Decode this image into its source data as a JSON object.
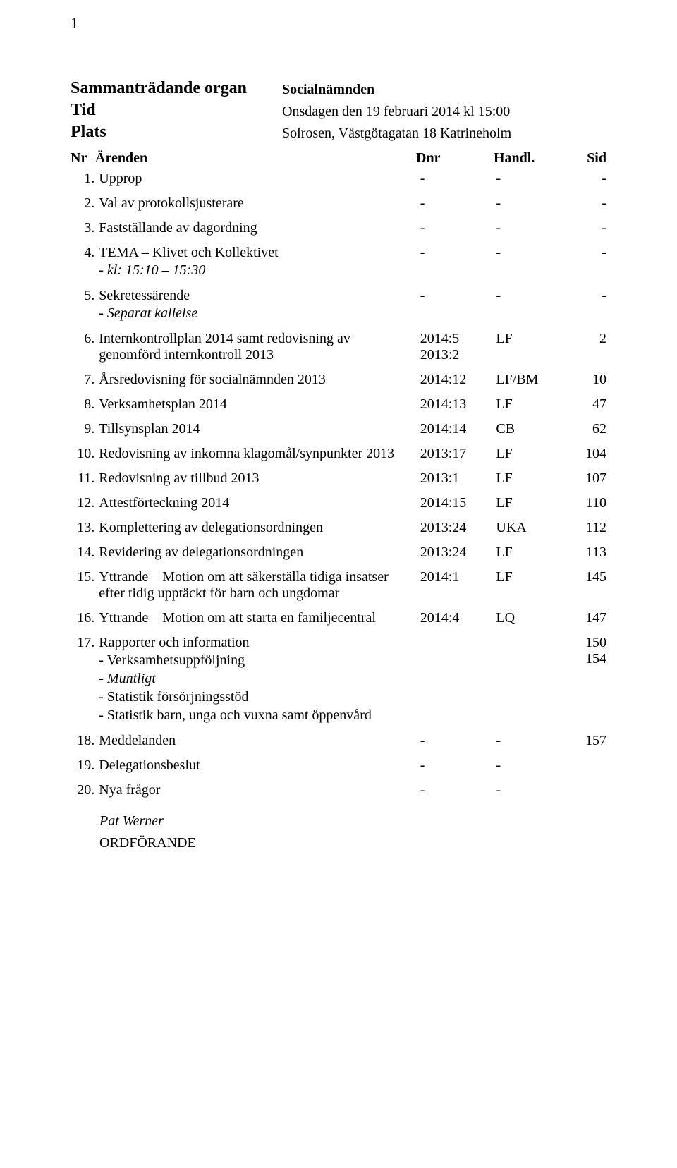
{
  "page_number": "1",
  "header": {
    "organ_label": "Sammanträdande organ",
    "organ_value": "Socialnämnden",
    "tid_label": "Tid",
    "tid_value": "Onsdagen den 19 februari 2014 kl 15:00",
    "plats_label": "Plats",
    "plats_value": "Solrosen, Västgötagatan 18 Katrineholm"
  },
  "columns": {
    "nr": "Nr",
    "arenden": "Ärenden",
    "dnr": "Dnr",
    "handl": "Handl.",
    "sid": "Sid"
  },
  "items": [
    {
      "nr": "1.",
      "text": "Upprop",
      "dnr": [
        "-"
      ],
      "handl": "-",
      "sid": [
        "-"
      ]
    },
    {
      "nr": "2.",
      "text": "Val av protokollsjusterare",
      "dnr": [
        "-"
      ],
      "handl": "-",
      "sid": [
        "-"
      ]
    },
    {
      "nr": "3.",
      "text": "Fastställande av dagordning",
      "dnr": [
        "-"
      ],
      "handl": "-",
      "sid": [
        "-"
      ]
    },
    {
      "nr": "4.",
      "text": "TEMA – Klivet och Kollektivet",
      "subs": [
        {
          "text": "- kl: 15:10 – 15:30",
          "italic": true
        }
      ],
      "dnr": [
        "-"
      ],
      "handl": "-",
      "sid": [
        "-"
      ]
    },
    {
      "nr": "5.",
      "text": "Sekretessärende",
      "subs": [
        {
          "text": "- Separat kallelse",
          "italic": true
        }
      ],
      "dnr": [
        "-"
      ],
      "handl": "-",
      "sid": [
        "-"
      ]
    },
    {
      "nr": "6.",
      "text": "Internkontrollplan 2014 samt redovisning av genomförd internkontroll 2013",
      "dnr": [
        "2014:5",
        "2013:2"
      ],
      "handl": "LF",
      "sid": [
        "2"
      ]
    },
    {
      "nr": "7.",
      "text": "Årsredovisning för socialnämnden 2013",
      "dnr": [
        "2014:12"
      ],
      "handl": "LF/BM",
      "sid": [
        "10"
      ]
    },
    {
      "nr": "8.",
      "text": "Verksamhetsplan 2014",
      "dnr": [
        "2014:13"
      ],
      "handl": "LF",
      "sid": [
        "47"
      ]
    },
    {
      "nr": "9.",
      "text": "Tillsynsplan 2014",
      "dnr": [
        "2014:14"
      ],
      "handl": "CB",
      "sid": [
        "62"
      ]
    },
    {
      "nr": "10.",
      "text": "Redovisning av inkomna klagomål/synpunkter 2013",
      "dnr": [
        "2013:17"
      ],
      "handl": "LF",
      "sid": [
        "104"
      ]
    },
    {
      "nr": "11.",
      "text": "Redovisning av tillbud 2013",
      "dnr": [
        "2013:1"
      ],
      "handl": "LF",
      "sid": [
        "107"
      ]
    },
    {
      "nr": "12.",
      "text": "Attestförteckning 2014",
      "dnr": [
        "2014:15"
      ],
      "handl": "LF",
      "sid": [
        "110"
      ]
    },
    {
      "nr": "13.",
      "text": "Komplettering av delegationsordningen",
      "dnr": [
        "2013:24"
      ],
      "handl": "UKA",
      "sid": [
        "112"
      ]
    },
    {
      "nr": "14.",
      "text": "Revidering av delegationsordningen",
      "dnr": [
        "2013:24"
      ],
      "handl": "LF",
      "sid": [
        "113"
      ]
    },
    {
      "nr": "15.",
      "text": "Yttrande – Motion om att säkerställa tidiga insatser efter tidig upptäckt för barn och ungdomar",
      "dnr": [
        "2014:1"
      ],
      "handl": "LF",
      "sid": [
        "145"
      ]
    },
    {
      "nr": "16.",
      "text": "Yttrande – Motion om att starta en familjecentral",
      "dnr": [
        "2014:4"
      ],
      "handl": "LQ",
      "sid": [
        "147"
      ]
    },
    {
      "nr": "17.",
      "text": "Rapporter och information",
      "subs": [
        {
          "text": "- Verksamhetsuppföljning",
          "italic": false
        },
        {
          "text": "- Muntligt",
          "italic": true
        },
        {
          "text": "- Statistik försörjningsstöd",
          "italic": false
        },
        {
          "text": "- Statistik barn, unga och vuxna samt öppenvård",
          "italic": false
        }
      ],
      "dnr": [
        ""
      ],
      "handl": "",
      "sid": [
        "",
        "",
        "",
        "150",
        "154"
      ]
    },
    {
      "nr": "18.",
      "text": "Meddelanden",
      "dnr": [
        "-"
      ],
      "handl": "-",
      "sid": [
        "157"
      ]
    },
    {
      "nr": "19.",
      "text": "Delegationsbeslut",
      "dnr": [
        "-"
      ],
      "handl": "-",
      "sid": [
        ""
      ]
    },
    {
      "nr": "20.",
      "text": "Nya frågor",
      "dnr": [
        "-"
      ],
      "handl": "-",
      "sid": [
        ""
      ]
    }
  ],
  "signature": {
    "name": "Pat Werner",
    "role": "ORDFÖRANDE"
  }
}
